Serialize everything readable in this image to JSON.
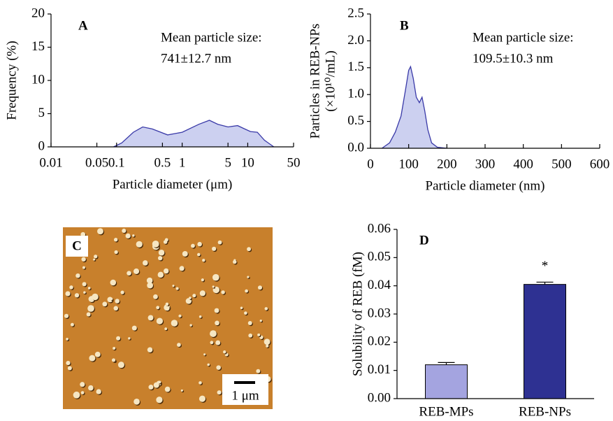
{
  "chart_data": [
    {
      "type": "area",
      "panel_label": "A",
      "annotations": [
        "Mean particle size:",
        "741±12.7 nm"
      ],
      "x_label": "Particle diameter (μm)",
      "y_label": [
        "Frequency (%)"
      ],
      "xscale": "log",
      "xlim": [
        0.01,
        50
      ],
      "xticks": [
        0.01,
        0.05,
        0.1,
        0.5,
        1,
        5,
        10,
        50
      ],
      "ylim": [
        0,
        20
      ],
      "yticks": [
        0,
        5,
        10,
        15,
        20
      ],
      "x": [
        0.09,
        0.12,
        0.18,
        0.25,
        0.35,
        0.6,
        1,
        1.8,
        2.6,
        3.5,
        5,
        7,
        9,
        11,
        14,
        18,
        25
      ],
      "values": [
        0,
        0.6,
        2.2,
        3,
        2.7,
        1.8,
        2.2,
        3.4,
        4,
        3.4,
        3,
        3.2,
        2.7,
        2.3,
        2.2,
        1,
        0
      ],
      "color": "#3a3aa8",
      "fill_color": "#ccd0f0"
    },
    {
      "type": "area",
      "panel_label": "B",
      "annotations": [
        "Mean particle size:",
        "109.5±10.3 nm"
      ],
      "x_label": "Particle diameter (nm)",
      "y_label": [
        "Particles in REB-NPs",
        "(×10¹⁰/mL)"
      ],
      "xscale": "linear",
      "xlim": [
        0,
        600
      ],
      "xticks": [
        0,
        100,
        200,
        300,
        400,
        500,
        600
      ],
      "ylim": [
        0,
        2.5
      ],
      "yticks": [
        {
          "value": 0,
          "label": "0.0"
        },
        0.5,
        {
          "value": 1,
          "label": "1.0"
        },
        1.5,
        {
          "value": 2,
          "label": "2.0"
        },
        2.5
      ],
      "x": [
        30,
        50,
        65,
        80,
        92,
        100,
        105,
        112,
        120,
        128,
        135,
        142,
        150,
        160,
        175,
        200
      ],
      "values": [
        0,
        0.1,
        0.3,
        0.6,
        1.1,
        1.45,
        1.52,
        1.3,
        0.95,
        0.85,
        0.95,
        0.7,
        0.35,
        0.1,
        0.02,
        0
      ],
      "color": "#3a3aa8",
      "fill_color": "#ccd0f0"
    },
    {
      "type": "image",
      "panel_label": "C",
      "scale_bar_label": "1 μm"
    },
    {
      "type": "bar",
      "panel_label": "D",
      "y_label": [
        "Solubility of REB (fM)"
      ],
      "categories": [
        "REB-MPs",
        "REB-NPs"
      ],
      "values": [
        0.012,
        0.0405
      ],
      "error_values": [
        0.0008,
        0.0008
      ],
      "colors": [
        "#a4a4e0",
        "#2e3192"
      ],
      "value_annotations": [
        null,
        "*"
      ],
      "ylim": [
        0,
        0.06
      ],
      "yticks": [
        {
          "value": 0,
          "label": "0.00"
        },
        {
          "value": 0.01,
          "label": "0.01"
        },
        {
          "value": 0.02,
          "label": "0.02"
        },
        {
          "value": 0.03,
          "label": "0.03"
        },
        {
          "value": 0.04,
          "label": "0.04"
        },
        {
          "value": 0.05,
          "label": "0.05"
        },
        {
          "value": 0.06,
          "label": "0.06"
        }
      ]
    }
  ]
}
